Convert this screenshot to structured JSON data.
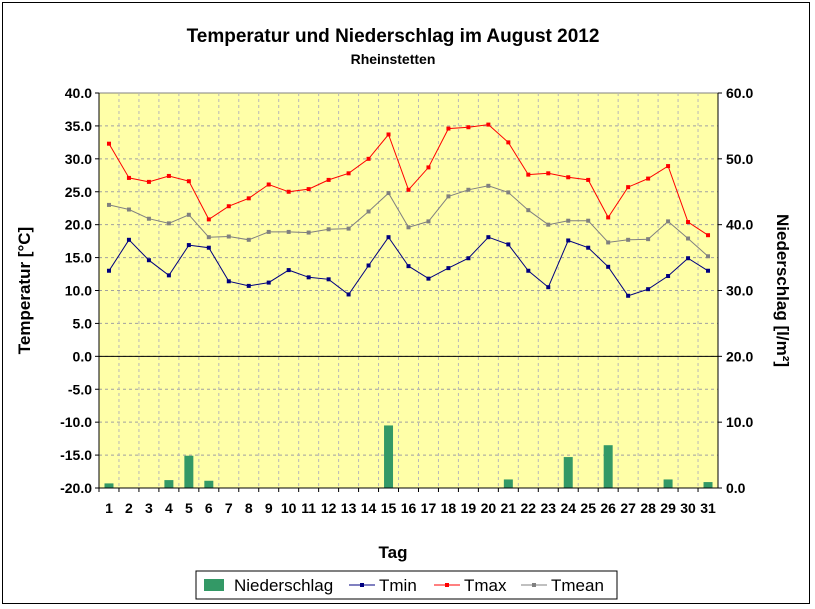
{
  "chart_data": {
    "type": "bar+line",
    "title": "Temperatur und Niederschlag im August 2012",
    "subtitle": "Rheinstetten",
    "xlabel": "Tag",
    "ylabel_left": "Temperatur [°C]",
    "ylabel_right": "Niederschlag [l/m²]",
    "ylim_left": [
      -20,
      40
    ],
    "ylim_right": [
      0,
      60
    ],
    "y_ticks_left": [
      "40.0",
      "35.0",
      "30.0",
      "25.0",
      "20.0",
      "15.0",
      "10.0",
      "5.0",
      "0.0",
      "-5.0",
      "-10.0",
      "-15.0",
      "-20.0"
    ],
    "y_ticks_right": [
      "60.0",
      "50.0",
      "40.0",
      "30.0",
      "20.0",
      "10.0",
      "0.0"
    ],
    "categories": [
      "1",
      "2",
      "3",
      "4",
      "5",
      "6",
      "7",
      "8",
      "9",
      "10",
      "11",
      "12",
      "13",
      "14",
      "15",
      "16",
      "17",
      "18",
      "19",
      "20",
      "21",
      "22",
      "23",
      "24",
      "25",
      "26",
      "27",
      "28",
      "29",
      "30",
      "31"
    ],
    "grid": true,
    "legend_position": "bottom",
    "colors": {
      "plot_bg": "#ffffa8",
      "niederschlag": "#339966",
      "tmin": "#000080",
      "tmax": "#ff0000",
      "tmean": "#808080"
    },
    "series": [
      {
        "name": "Niederschlag",
        "type": "bar",
        "axis": "right",
        "values": [
          0.7,
          0,
          0,
          1.2,
          4.9,
          1.1,
          0,
          0,
          0,
          0,
          0,
          0,
          0,
          0,
          9.5,
          0,
          0,
          0,
          0,
          0,
          1.3,
          0,
          0,
          4.7,
          0,
          6.5,
          0,
          0,
          1.3,
          0,
          0.9
        ]
      },
      {
        "name": "Tmin",
        "type": "line",
        "axis": "left",
        "values": [
          13.0,
          17.7,
          14.6,
          12.3,
          16.9,
          16.5,
          11.4,
          10.7,
          11.2,
          13.1,
          12.0,
          11.7,
          9.4,
          13.8,
          18.1,
          13.7,
          11.8,
          13.4,
          14.9,
          18.1,
          17.0,
          13.0,
          10.5,
          17.6,
          16.5,
          13.6,
          9.2,
          10.2,
          12.2,
          14.9,
          13.0
        ]
      },
      {
        "name": "Tmax",
        "type": "line",
        "axis": "left",
        "values": [
          32.3,
          27.1,
          26.5,
          27.4,
          26.6,
          20.8,
          22.8,
          24.0,
          26.1,
          25.0,
          25.4,
          26.8,
          27.8,
          30.0,
          33.7,
          25.3,
          28.7,
          34.6,
          34.8,
          35.2,
          32.5,
          27.6,
          27.8,
          27.2,
          26.8,
          21.1,
          25.7,
          27.0,
          28.9,
          20.4,
          18.4
        ]
      },
      {
        "name": "Tmean",
        "type": "line",
        "axis": "left",
        "values": [
          23.0,
          22.3,
          20.9,
          20.2,
          21.5,
          18.1,
          18.2,
          17.7,
          18.9,
          18.9,
          18.8,
          19.3,
          19.4,
          22.0,
          24.8,
          19.6,
          20.5,
          24.3,
          25.3,
          25.9,
          24.9,
          22.2,
          20.0,
          20.6,
          20.6,
          17.3,
          17.7,
          17.8,
          20.5,
          17.9,
          15.2
        ]
      }
    ]
  }
}
